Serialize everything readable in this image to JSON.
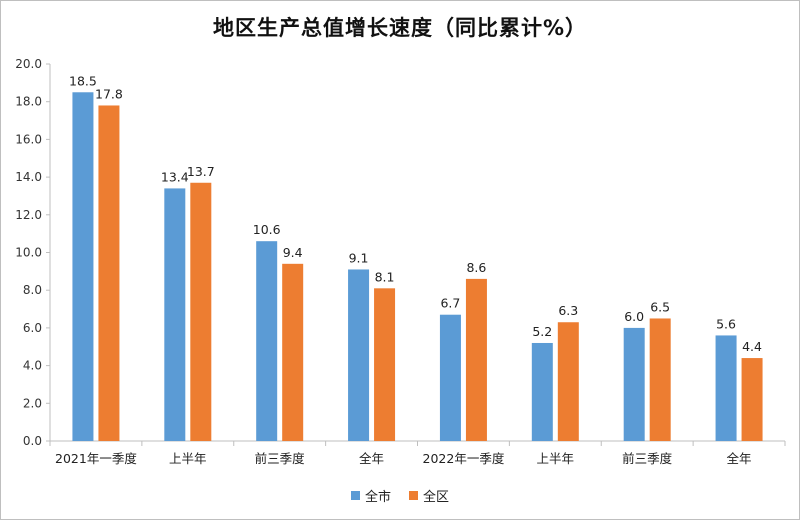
{
  "chart_data": {
    "type": "bar",
    "title": "地区生产总值增长速度（同比累计%）",
    "categories": [
      "2021年一季度",
      "上半年",
      "前三季度",
      "全年",
      "2022年一季度",
      "上半年",
      "前三季度",
      "全年"
    ],
    "series": [
      {
        "name": "全市",
        "color": "#5b9bd5",
        "values": [
          18.5,
          13.4,
          10.6,
          9.1,
          6.7,
          5.2,
          6.0,
          5.6
        ]
      },
      {
        "name": "全区",
        "color": "#ed7d31",
        "values": [
          17.8,
          13.7,
          9.4,
          8.1,
          8.6,
          6.3,
          6.5,
          4.4
        ]
      }
    ],
    "ylim": [
      0,
      20
    ],
    "ytick_step": 2,
    "ytick_labels": [
      "0.0",
      "2.0",
      "4.0",
      "6.0",
      "8.0",
      "10.0",
      "12.0",
      "14.0",
      "16.0",
      "18.0",
      "20.0"
    ],
    "data_labels": true,
    "grid": false,
    "legend_position": "bottom"
  }
}
